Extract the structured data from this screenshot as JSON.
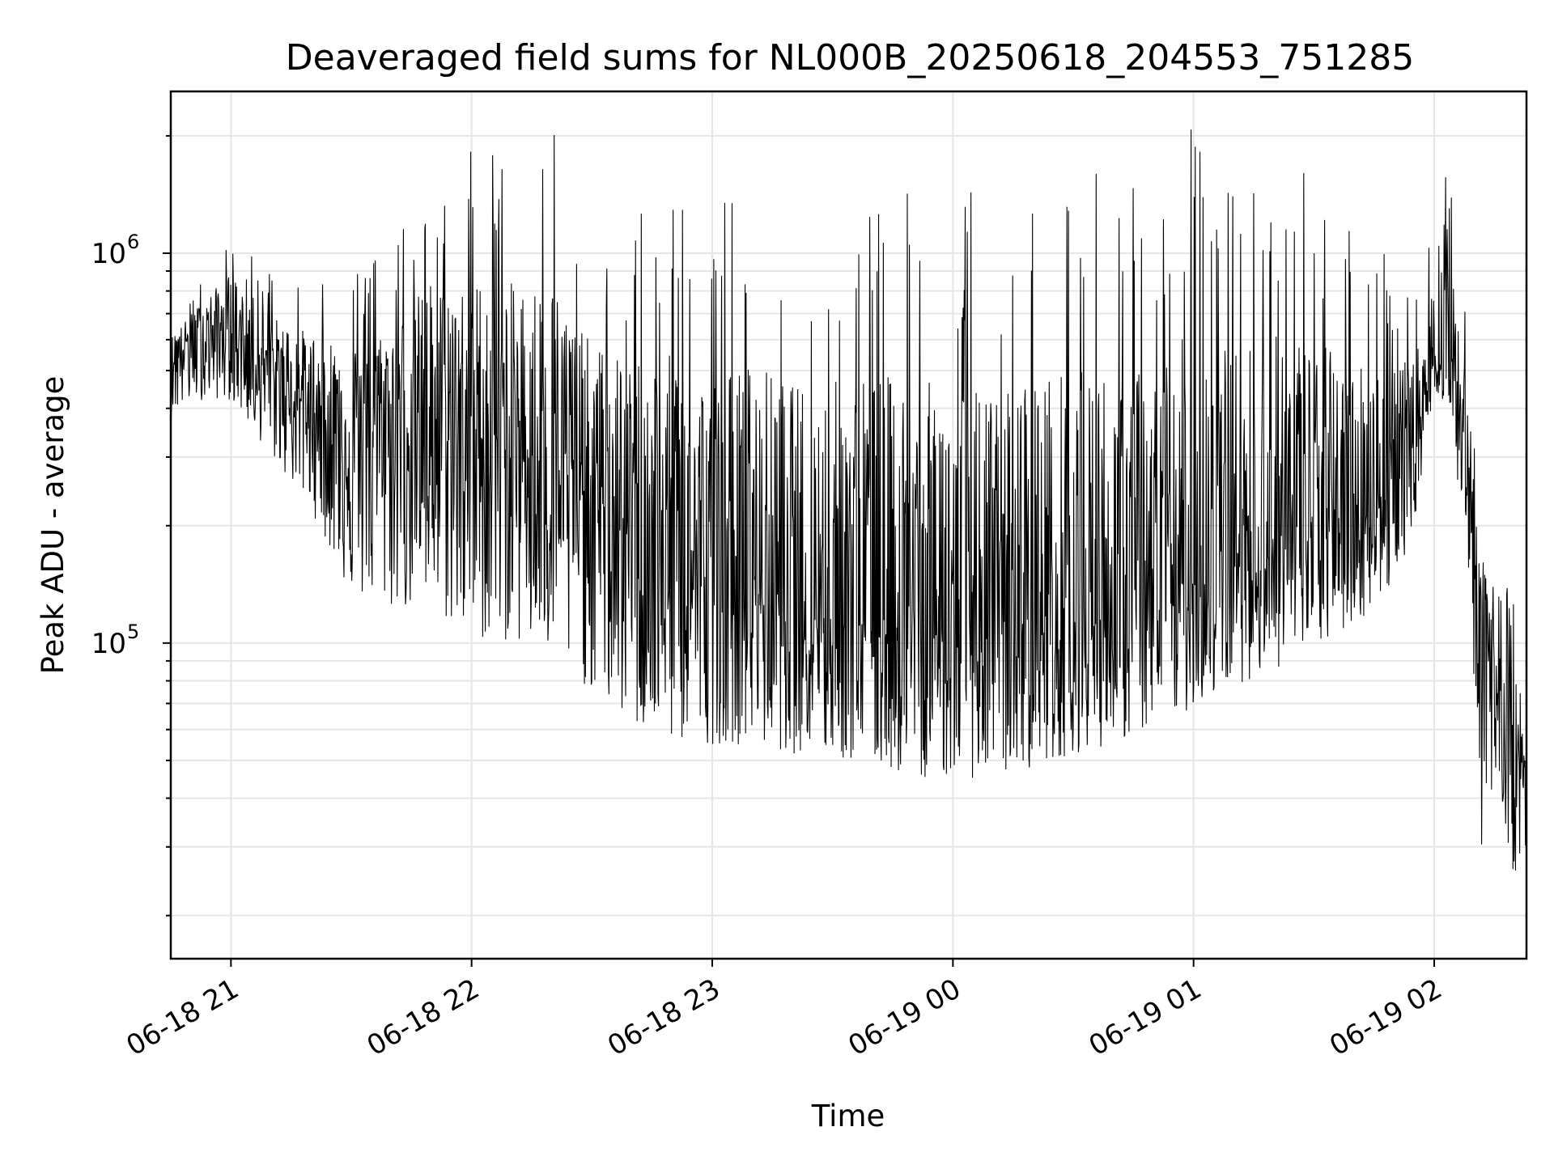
{
  "chart_data": {
    "type": "line",
    "title": "Deaveraged field sums for NL000B_20250618_204553_751285",
    "xlabel": "Time",
    "ylabel": "Peak ADU - average",
    "yscale": "log",
    "grid": true,
    "line_color": "#000000",
    "x_range": [
      "2025-06-18 20:45",
      "2025-06-19 02:23"
    ],
    "ylim": [
      15500,
      2600000
    ],
    "x_ticks": [
      {
        "value": "2025-06-18 21:00",
        "label": "06-18 21"
      },
      {
        "value": "2025-06-18 22:00",
        "label": "06-18 22"
      },
      {
        "value": "2025-06-18 23:00",
        "label": "06-18 23"
      },
      {
        "value": "2025-06-19 00:00",
        "label": "06-19 00"
      },
      {
        "value": "2025-06-19 01:00",
        "label": "06-19 01"
      },
      {
        "value": "2025-06-19 02:00",
        "label": "06-19 02"
      }
    ],
    "y_ticks": [
      {
        "value": 100000,
        "base": "10",
        "exp": "5"
      },
      {
        "value": 1000000,
        "base": "10",
        "exp": "6"
      }
    ],
    "series": [
      {
        "x": [
          "2025-06-18 20:45",
          "2025-06-18 20:52",
          "2025-06-18 21:00",
          "2025-06-18 21:10",
          "2025-06-18 21:20",
          "2025-06-18 21:30",
          "2025-06-18 21:40",
          "2025-06-18 21:50",
          "2025-06-18 22:00",
          "2025-06-18 22:10",
          "2025-06-18 22:20",
          "2025-06-18 22:30",
          "2025-06-18 22:40",
          "2025-06-18 22:50",
          "2025-06-18 23:00",
          "2025-06-18 23:10",
          "2025-06-18 23:20",
          "2025-06-18 23:30",
          "2025-06-18 23:40",
          "2025-06-18 23:50",
          "2025-06-19 00:00",
          "2025-06-19 00:10",
          "2025-06-19 00:20",
          "2025-06-19 00:30",
          "2025-06-19 00:40",
          "2025-06-19 00:50",
          "2025-06-19 01:00",
          "2025-06-19 01:10",
          "2025-06-19 01:20",
          "2025-06-19 01:30",
          "2025-06-19 01:40",
          "2025-06-19 01:50",
          "2025-06-19 01:55",
          "2025-06-19 02:00",
          "2025-06-19 02:04",
          "2025-06-19 02:08",
          "2025-06-19 02:12",
          "2025-06-19 02:16",
          "2025-06-19 02:20",
          "2025-06-19 02:23"
        ],
        "center": [
          560000,
          620000,
          650000,
          500000,
          400000,
          340000,
          380000,
          380000,
          340000,
          330000,
          290000,
          240000,
          190000,
          160000,
          150000,
          140000,
          130000,
          125000,
          118000,
          112000,
          108000,
          105000,
          108000,
          112000,
          120000,
          130000,
          145000,
          160000,
          175000,
          190000,
          210000,
          250000,
          320000,
          550000,
          600000,
          300000,
          120000,
          70000,
          55000,
          40000
        ],
        "low": [
          380000,
          420000,
          420000,
          300000,
          220000,
          130000,
          120000,
          120000,
          100000,
          100000,
          90000,
          75000,
          60000,
          55000,
          55000,
          55000,
          52000,
          50000,
          48000,
          45000,
          45000,
          45000,
          48000,
          52000,
          55000,
          60000,
          68000,
          78000,
          85000,
          95000,
          110000,
          140000,
          200000,
          450000,
          380000,
          160000,
          28000,
          40000,
          25000,
          30000
        ],
        "peak": [
          650000,
          850000,
          1150000,
          900000,
          900000,
          950000,
          1000000,
          1700000,
          1900000,
          1800000,
          2100000,
          1200000,
          1300000,
          1500000,
          1250000,
          1600000,
          1300000,
          1450000,
          1600000,
          1550000,
          1500000,
          1400000,
          1750000,
          1700000,
          1650000,
          1550000,
          2200000,
          1600000,
          1800000,
          1550000,
          1150000,
          950000,
          800000,
          1150000,
          1800000,
          700000,
          180000,
          150000,
          140000,
          60000
        ]
      }
    ]
  }
}
